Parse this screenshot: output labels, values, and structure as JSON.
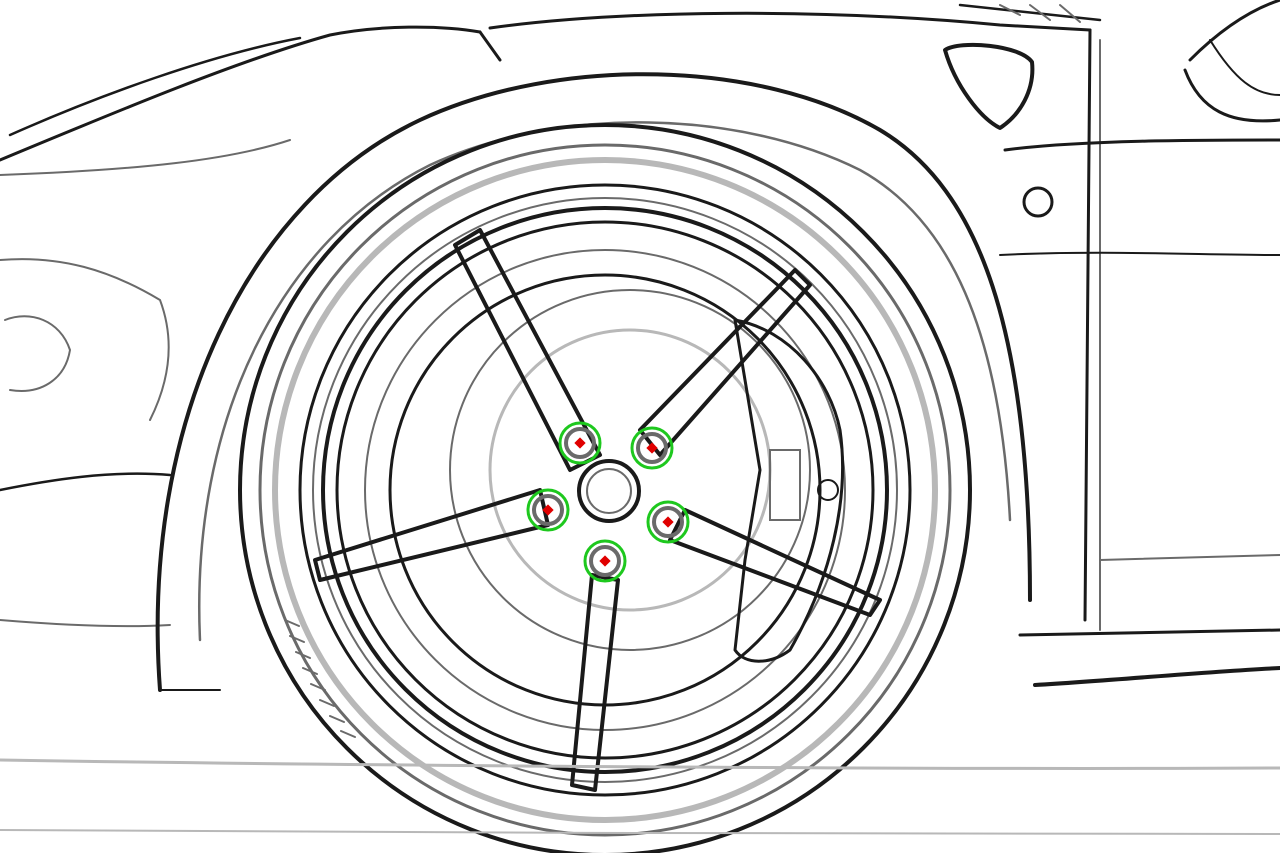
{
  "image": {
    "subject": "sports-car-wheel-line-drawing",
    "style": "edge-detected sketch"
  },
  "annotations": {
    "ring_color": "#1ec81e",
    "dot_color": "#e00000",
    "points": [
      {
        "name": "lug-nut-top-left"
      },
      {
        "name": "lug-nut-top-right"
      },
      {
        "name": "lug-nut-left"
      },
      {
        "name": "lug-nut-right"
      },
      {
        "name": "lug-nut-bottom"
      }
    ]
  }
}
